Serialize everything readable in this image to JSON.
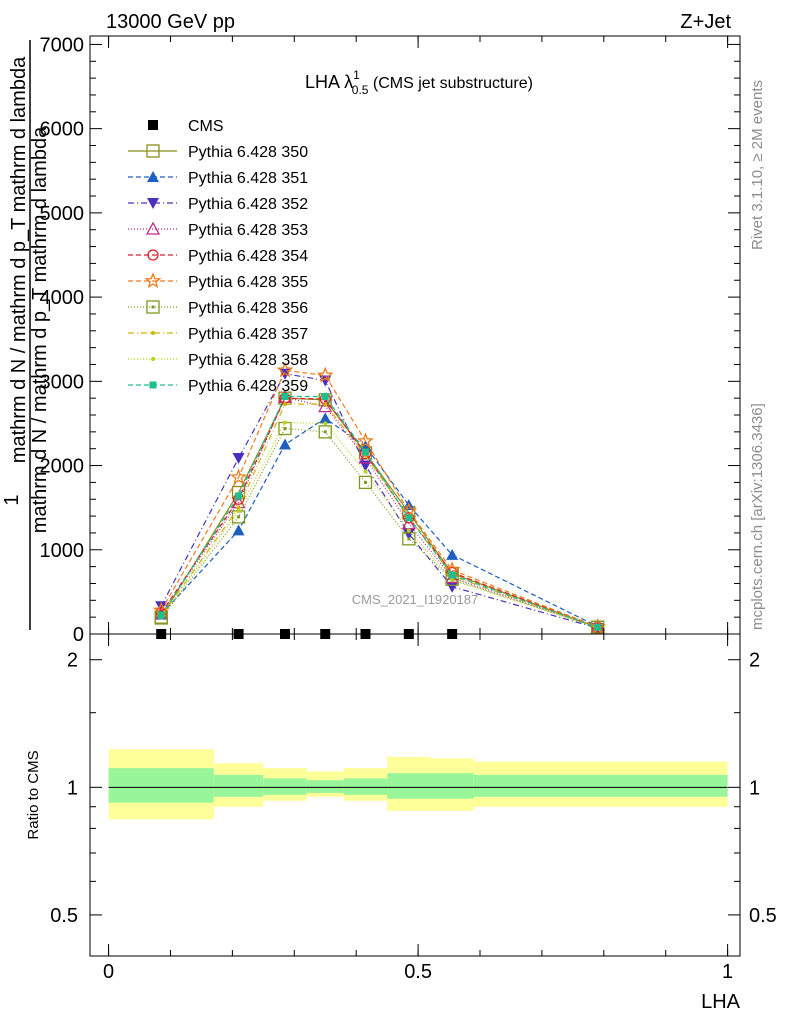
{
  "header": {
    "left": "13000 GeV pp",
    "right": "Z+Jet"
  },
  "side_labels": {
    "rivet": "Rivet 3.1.10, ≥ 2M events",
    "mcplots": "mcplots.cern.ch [arXiv:1306.3436]"
  },
  "watermark": "CMS_2021_I1920187",
  "chart_data": [
    {
      "type": "line",
      "title": {
        "main": "LHA λ",
        "sup": "1",
        "sub": "0.5",
        "suffix": " (CMS jet substructure)"
      },
      "ylabel": {
        "one": "1",
        "numerator": "mathrm d N / mathrm d p_T mathrm d lambda",
        "denominator": "mathrm d N / mathrm d p_T mathrm d lambda"
      },
      "ylim": [
        0,
        7100
      ],
      "yticks": [
        0,
        1000,
        2000,
        3000,
        4000,
        5000,
        6000,
        7000
      ],
      "ytick_labels": [
        "0",
        "1000",
        "2000",
        "3000",
        "4000",
        "5000",
        "6000",
        "7000"
      ],
      "xlim": [
        -0.03,
        1.02
      ],
      "x": [
        0.085,
        0.21,
        0.285,
        0.35,
        0.415,
        0.485,
        0.555,
        0.79
      ],
      "series": [
        {
          "name": "CMS",
          "style": "data",
          "color": "#000000",
          "marker": "square-filled",
          "values": [
            0,
            0,
            0,
            0,
            0,
            0,
            0,
            null
          ]
        },
        {
          "name": "Pythia 6.428 350",
          "color": "#8c8c1f",
          "dash": "",
          "marker": "square-open",
          "values": [
            200,
            1680,
            2800,
            2780,
            2150,
            1440,
            720,
            80
          ]
        },
        {
          "name": "Pythia 6.428 351",
          "color": "#1f5fbf",
          "dash": "5,3",
          "marker": "triangle-up-filled",
          "values": [
            230,
            1230,
            2250,
            2560,
            2230,
            1530,
            940,
            90
          ]
        },
        {
          "name": "Pythia 6.428 352",
          "color": "#4b2fbf",
          "dash": "6,3,1,3",
          "marker": "triangle-down-filled",
          "values": [
            330,
            2090,
            3090,
            3010,
            2000,
            1190,
            560,
            70
          ]
        },
        {
          "name": "Pythia 6.428 353",
          "color": "#c0288c",
          "dash": "1,2",
          "marker": "triangle-up-open",
          "values": [
            240,
            1560,
            2810,
            2700,
            2090,
            1310,
            670,
            75
          ]
        },
        {
          "name": "Pythia 6.428 354",
          "color": "#dd1f2a",
          "dash": "5,3",
          "marker": "circle-open",
          "values": [
            250,
            1600,
            2800,
            2790,
            2140,
            1380,
            730,
            80
          ]
        },
        {
          "name": "Pythia 6.428 355",
          "color": "#f07a1a",
          "dash": "5,3",
          "marker": "star-open",
          "values": [
            280,
            1860,
            3130,
            3070,
            2290,
            1460,
            760,
            85
          ]
        },
        {
          "name": "Pythia 6.428 356",
          "color": "#7c9a1f",
          "dash": "1,2",
          "marker": "square-dot-open",
          "values": [
            190,
            1390,
            2440,
            2400,
            1800,
            1130,
            650,
            80
          ]
        },
        {
          "name": "Pythia 6.428 357",
          "color": "#c9b80a",
          "dash": "6,3,1,3",
          "marker": "small-dot",
          "values": [
            210,
            1500,
            2730,
            2730,
            2120,
            1390,
            690,
            80
          ]
        },
        {
          "name": "Pythia 6.428 358",
          "color": "#b7d11f",
          "dash": "1,2",
          "marker": "small-dot",
          "values": [
            200,
            1460,
            2510,
            2500,
            1930,
            1230,
            640,
            75
          ]
        },
        {
          "name": "Pythia 6.428 359",
          "color": "#1fbf8c",
          "dash": "5,3",
          "marker": "square-small-filled",
          "values": [
            220,
            1640,
            2820,
            2820,
            2160,
            1380,
            700,
            80
          ]
        }
      ]
    },
    {
      "type": "area",
      "ylabel": "Ratio to CMS",
      "xlabel": "LHA",
      "ylim": [
        0.4,
        2.3
      ],
      "log_scale_y": true,
      "yticks": [
        0.5,
        1,
        2
      ],
      "ytick_labels": [
        "0.5",
        "1",
        "2"
      ],
      "xlim": [
        -0.03,
        1.02
      ],
      "xticks": [
        0,
        0.5,
        1
      ],
      "xtick_labels": [
        "0",
        "0.5",
        "1"
      ],
      "reference_line": 1,
      "bins": [
        {
          "x0": 0.0,
          "x1": 0.17,
          "inner": [
            0.92,
            1.11
          ],
          "outer": [
            0.84,
            1.23
          ]
        },
        {
          "x0": 0.17,
          "x1": 0.25,
          "inner": [
            0.95,
            1.07
          ],
          "outer": [
            0.9,
            1.14
          ]
        },
        {
          "x0": 0.25,
          "x1": 0.32,
          "inner": [
            0.96,
            1.05
          ],
          "outer": [
            0.93,
            1.11
          ]
        },
        {
          "x0": 0.32,
          "x1": 0.38,
          "inner": [
            0.97,
            1.04
          ],
          "outer": [
            0.95,
            1.09
          ]
        },
        {
          "x0": 0.38,
          "x1": 0.45,
          "inner": [
            0.96,
            1.05
          ],
          "outer": [
            0.93,
            1.11
          ]
        },
        {
          "x0": 0.45,
          "x1": 0.52,
          "inner": [
            0.94,
            1.08
          ],
          "outer": [
            0.88,
            1.18
          ]
        },
        {
          "x0": 0.52,
          "x1": 0.59,
          "inner": [
            0.94,
            1.08
          ],
          "outer": [
            0.88,
            1.17
          ]
        },
        {
          "x0": 0.59,
          "x1": 1.0,
          "inner": [
            0.95,
            1.07
          ],
          "outer": [
            0.9,
            1.15
          ]
        }
      ],
      "colors": {
        "inner": "#99f599",
        "outer": "#ffff99",
        "line": "#000000"
      }
    }
  ]
}
